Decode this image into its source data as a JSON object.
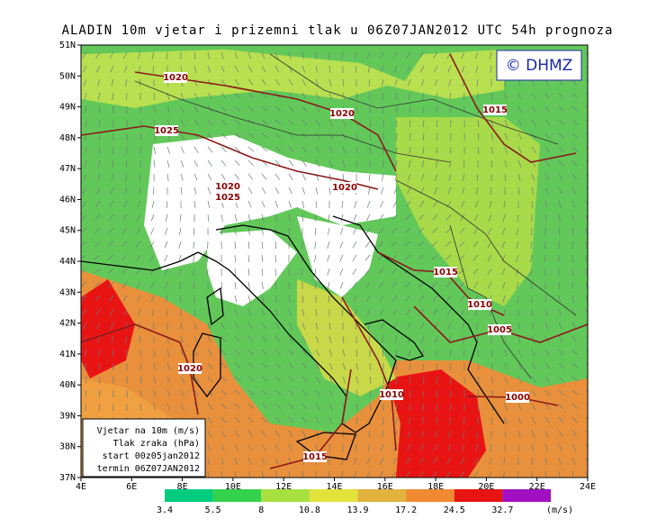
{
  "title": "ALADIN 10m vjetar i prizemni tlak u 06Z07JAN2012 UTC 54h prognoza",
  "copyright": "© DHMZ",
  "lat_labels": [
    "51N",
    "50N",
    "49N",
    "48N",
    "47N",
    "46N",
    "45N",
    "44N",
    "43N",
    "42N",
    "41N",
    "40N",
    "39N",
    "38N",
    "37N"
  ],
  "lon_labels": [
    "4E",
    "6E",
    "8E",
    "10E",
    "12E",
    "14E",
    "16E",
    "18E",
    "20E",
    "22E",
    "24E"
  ],
  "isobar_labels": [
    "1020",
    "1025",
    "1020",
    "1015",
    "1020",
    "1025",
    "1020",
    "1015",
    "1010",
    "1005",
    "1020",
    "1010",
    "1000",
    "1015"
  ],
  "info": [
    "Vjetar na 10m (m/s)",
    "Tlak zraka (hPa)",
    "start 00z05jan2012",
    "termin 06Z07JAN2012"
  ],
  "colorbar": {
    "colors": [
      "#00cc80",
      "#33d24c",
      "#a8e040",
      "#e2e23c",
      "#e2b23c",
      "#f08a30",
      "#e81414",
      "#a010c0"
    ],
    "labels": [
      "3.4",
      "5.5",
      "8",
      "10.8",
      "13.9",
      "17.2",
      "24.5",
      "32.7"
    ],
    "unit": "(m/s)"
  }
}
